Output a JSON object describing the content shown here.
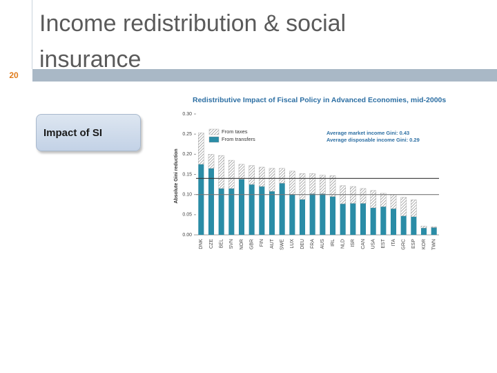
{
  "slide": {
    "title": "Income redistribution & social insurance",
    "number": "20",
    "box_label": "Impact of SI"
  },
  "chart_data": {
    "type": "stacked-bar",
    "title": "Redistributive Impact of Fiscal Policy in Advanced Economies, mid-2000s",
    "y_label": "Absolute Gini reduction",
    "annotations": [
      "Average market income Gini: 0.43",
      "Average disposable income Gini: 0.29"
    ],
    "categories": [
      "DNK",
      "CZE",
      "BEL",
      "SVN",
      "NOR",
      "GBR",
      "FIN",
      "AUT",
      "SWE",
      "LUX",
      "DEU",
      "FRA",
      "AUS",
      "IRL",
      "NLD",
      "ISR",
      "CAN",
      "USA",
      "EST",
      "ITA",
      "GRC",
      "ESP",
      "KOR",
      "TWN"
    ],
    "series": [
      {
        "name": "From transfers",
        "color": "#2a8ca6",
        "values": [
          0.175,
          0.165,
          0.115,
          0.115,
          0.138,
          0.125,
          0.12,
          0.108,
          0.128,
          0.1,
          0.088,
          0.102,
          0.102,
          0.095,
          0.077,
          0.078,
          0.078,
          0.067,
          0.07,
          0.065,
          0.047,
          0.045,
          0.017,
          0.018
        ]
      },
      {
        "name": "From taxes",
        "color": "#7a7a7a",
        "values": [
          0.078,
          0.035,
          0.082,
          0.07,
          0.037,
          0.047,
          0.048,
          0.057,
          0.037,
          0.058,
          0.064,
          0.05,
          0.046,
          0.052,
          0.045,
          0.042,
          0.037,
          0.043,
          0.033,
          0.035,
          0.046,
          0.042,
          0.005,
          0.002
        ]
      }
    ],
    "reference_lines": [
      0.14,
      0.1
    ],
    "ylim": [
      0,
      0.3
    ],
    "yticks": [
      {
        "value": 0,
        "label": "0.00"
      },
      0.05,
      {
        "value": 0.1,
        "label": "0.10"
      },
      0.15,
      {
        "value": 0.2,
        "label": "0.20"
      },
      0.25,
      {
        "value": 0.3,
        "label": "0.30"
      }
    ],
    "grid": false
  }
}
